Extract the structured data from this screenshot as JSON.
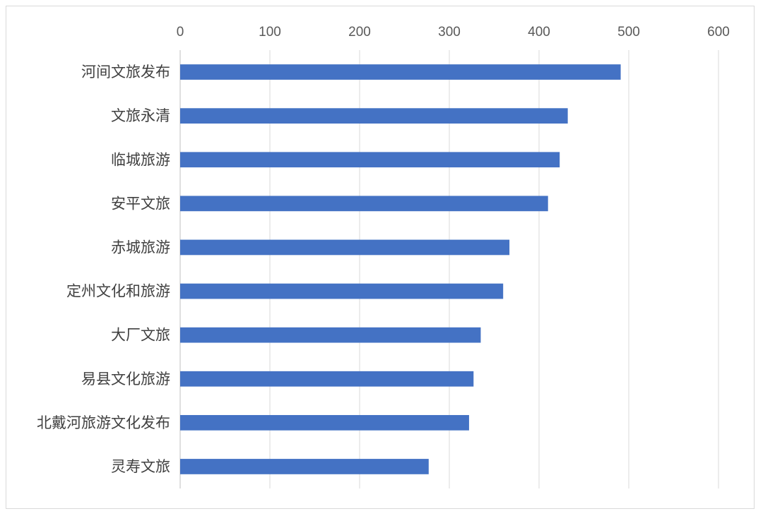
{
  "chart_data": {
    "type": "bar",
    "orientation": "horizontal",
    "categories": [
      "河间文旅发布",
      "文旅永清",
      "临城旅游",
      "安平文旅",
      "赤城旅游",
      "定州文化和旅游",
      "大厂文旅",
      "易县文化旅游",
      "北戴河旅游文化发布",
      "灵寿文旅"
    ],
    "values": [
      491,
      432,
      423,
      410,
      367,
      360,
      335,
      327,
      322,
      277
    ],
    "xlim": [
      0,
      600
    ],
    "xticks": [
      0,
      100,
      200,
      300,
      400,
      500,
      600
    ],
    "x_axis_position": "top",
    "grid": true,
    "legend": "none",
    "title": "",
    "xlabel": "",
    "ylabel": "",
    "bar_color": "#4472c4"
  }
}
